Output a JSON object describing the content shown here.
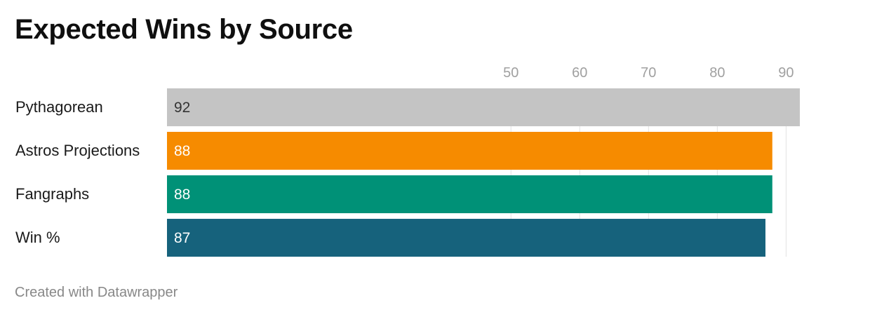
{
  "chart_data": {
    "type": "bar",
    "orientation": "horizontal",
    "title": "Expected Wins by Source",
    "categories": [
      "Pythagorean",
      "Astros Projections",
      "Fangraphs",
      "Win %"
    ],
    "values": [
      92,
      88,
      88,
      87
    ],
    "value_labels": [
      "92",
      "88",
      "88",
      "87"
    ],
    "colors": [
      "#c4c4c4",
      "#f68b00",
      "#009177",
      "#16627c"
    ],
    "label_colors": [
      "#333333",
      "#ffffff",
      "#ffffff",
      "#ffffff"
    ],
    "x_ticks": [
      "50",
      "60",
      "70",
      "80",
      "90"
    ],
    "x_tick_values": [
      50,
      60,
      70,
      80,
      90
    ],
    "xlim": [
      0,
      92
    ],
    "grid": true,
    "axis_position": "top"
  },
  "footer": {
    "credit": "Created with Datawrapper"
  }
}
